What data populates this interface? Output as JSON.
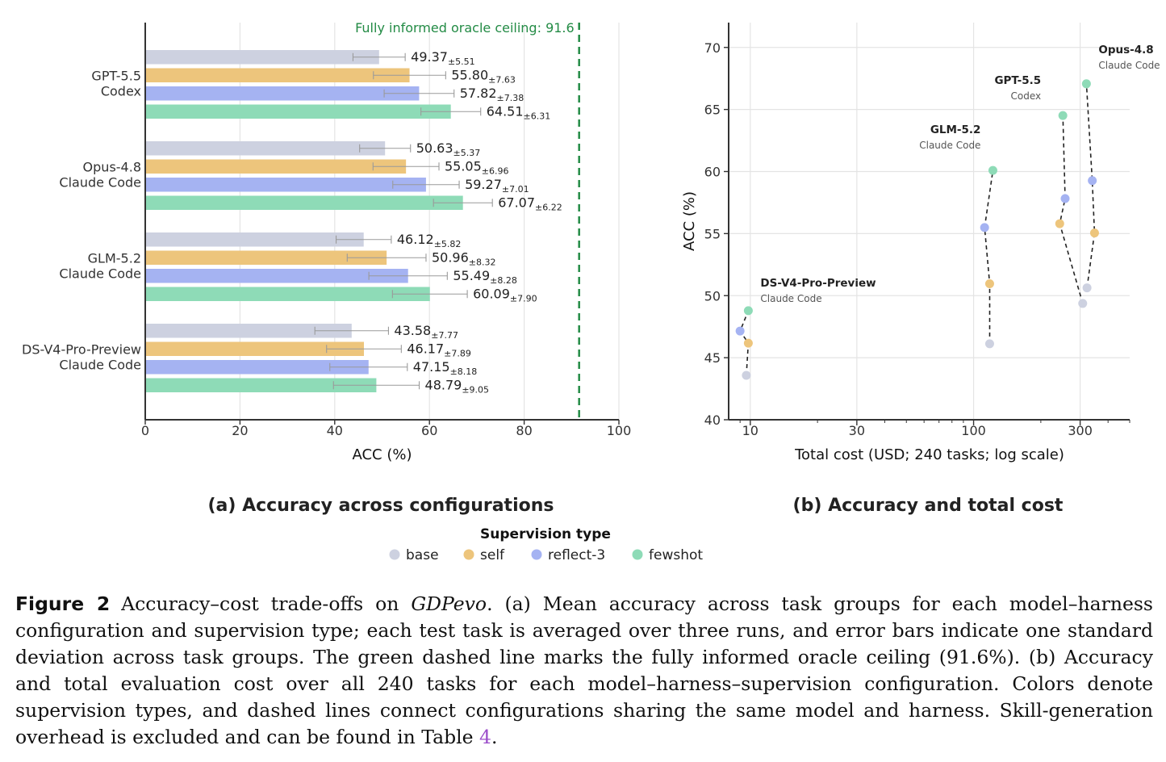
{
  "chart_data": [
    {
      "type": "bar",
      "orientation": "horizontal",
      "panel_title": "(a) Accuracy across configurations",
      "xlabel": "ACC (%)",
      "xlim": [
        0,
        100
      ],
      "xticks": [
        0,
        20,
        40,
        60,
        80,
        100
      ],
      "reference_line": {
        "value": 91.6,
        "label": "Fully informed oracle ceiling: 91.6",
        "color": "#238b45"
      },
      "groups": [
        {
          "label": [
            "GPT-5.5",
            "Codex"
          ],
          "bars": [
            {
              "series": "base",
              "value": 49.37,
              "err": 5.51,
              "mean_text": "49.37",
              "err_text": "±5.51"
            },
            {
              "series": "self",
              "value": 55.8,
              "err": 7.63,
              "mean_text": "55.80",
              "err_text": "±7.63"
            },
            {
              "series": "reflect-3",
              "value": 57.82,
              "err": 7.38,
              "mean_text": "57.82",
              "err_text": "±7.38"
            },
            {
              "series": "fewshot",
              "value": 64.51,
              "err": 6.31,
              "mean_text": "64.51",
              "err_text": "±6.31"
            }
          ]
        },
        {
          "label": [
            "Opus-4.8",
            "Claude Code"
          ],
          "bars": [
            {
              "series": "base",
              "value": 50.63,
              "err": 5.37,
              "mean_text": "50.63",
              "err_text": "±5.37"
            },
            {
              "series": "self",
              "value": 55.05,
              "err": 6.96,
              "mean_text": "55.05",
              "err_text": "±6.96"
            },
            {
              "series": "reflect-3",
              "value": 59.27,
              "err": 7.01,
              "mean_text": "59.27",
              "err_text": "±7.01"
            },
            {
              "series": "fewshot",
              "value": 67.07,
              "err": 6.22,
              "mean_text": "67.07",
              "err_text": "±6.22"
            }
          ]
        },
        {
          "label": [
            "GLM-5.2",
            "Claude Code"
          ],
          "bars": [
            {
              "series": "base",
              "value": 46.12,
              "err": 5.82,
              "mean_text": "46.12",
              "err_text": "±5.82"
            },
            {
              "series": "self",
              "value": 50.96,
              "err": 8.32,
              "mean_text": "50.96",
              "err_text": "±8.32"
            },
            {
              "series": "reflect-3",
              "value": 55.49,
              "err": 8.28,
              "mean_text": "55.49",
              "err_text": "±8.28"
            },
            {
              "series": "fewshot",
              "value": 60.09,
              "err": 7.9,
              "mean_text": "60.09",
              "err_text": "±7.90"
            }
          ]
        },
        {
          "label": [
            "DS-V4-Pro-Preview",
            "Claude Code"
          ],
          "bars": [
            {
              "series": "base",
              "value": 43.58,
              "err": 7.77,
              "mean_text": "43.58",
              "err_text": "±7.77"
            },
            {
              "series": "self",
              "value": 46.17,
              "err": 7.89,
              "mean_text": "46.17",
              "err_text": "±7.89"
            },
            {
              "series": "reflect-3",
              "value": 47.15,
              "err": 8.18,
              "mean_text": "47.15",
              "err_text": "±8.18"
            },
            {
              "series": "fewshot",
              "value": 48.79,
              "err": 9.05,
              "mean_text": "48.79",
              "err_text": "±9.05"
            }
          ]
        }
      ]
    },
    {
      "type": "scatter",
      "panel_title": "(b) Accuracy and total cost",
      "xlabel": "Total cost (USD; 240 tasks; log scale)",
      "ylabel": "ACC (%)",
      "xscale": "log",
      "xlim": [
        8,
        500
      ],
      "xticks": [
        10,
        30,
        100,
        300
      ],
      "xtick_labels": [
        "10",
        "30",
        "100",
        "300"
      ],
      "ylim": [
        40,
        72
      ],
      "yticks": [
        40,
        45,
        50,
        55,
        60,
        65,
        70
      ],
      "grid": true,
      "connectors": "dashed lines connect configurations of the same model and harness",
      "models": [
        {
          "name": "DS-V4-Pro-Preview",
          "harness": "Claude Code",
          "points": [
            {
              "series": "base",
              "x": 9.6,
              "y": 43.58
            },
            {
              "series": "self",
              "x": 9.8,
              "y": 46.17
            },
            {
              "series": "reflect-3",
              "x": 9.0,
              "y": 47.15
            },
            {
              "series": "fewshot",
              "x": 9.8,
              "y": 48.79
            }
          ]
        },
        {
          "name": "GLM-5.2",
          "harness": "Claude Code",
          "points": [
            {
              "series": "base",
              "x": 118,
              "y": 46.12
            },
            {
              "series": "self",
              "x": 118,
              "y": 50.96
            },
            {
              "series": "reflect-3",
              "x": 112,
              "y": 55.49
            },
            {
              "series": "fewshot",
              "x": 122,
              "y": 60.09
            }
          ]
        },
        {
          "name": "GPT-5.5",
          "harness": "Codex",
          "points": [
            {
              "series": "base",
              "x": 308,
              "y": 49.37
            },
            {
              "series": "self",
              "x": 243,
              "y": 55.8
            },
            {
              "series": "reflect-3",
              "x": 257,
              "y": 57.82
            },
            {
              "series": "fewshot",
              "x": 251,
              "y": 64.51
            }
          ]
        },
        {
          "name": "Opus-4.8",
          "harness": "Claude Code",
          "points": [
            {
              "series": "base",
              "x": 322,
              "y": 50.63
            },
            {
              "series": "self",
              "x": 348,
              "y": 55.05
            },
            {
              "series": "reflect-3",
              "x": 340,
              "y": 59.27
            },
            {
              "series": "fewshot",
              "x": 320,
              "y": 67.07
            }
          ]
        }
      ]
    }
  ],
  "legend": {
    "title": "Supervision type",
    "items": [
      {
        "key": "base",
        "label": "base",
        "color": "#cdd1e0"
      },
      {
        "key": "self",
        "label": "self",
        "color": "#edc57c"
      },
      {
        "key": "reflect-3",
        "label": "reflect-3",
        "color": "#a5b3f2"
      },
      {
        "key": "fewshot",
        "label": "fewshot",
        "color": "#8edbb7"
      }
    ]
  },
  "caption": {
    "label": "Figure 2",
    "part1": "Accuracy–cost trade-offs on ",
    "dataset": "GDPevo",
    "part2": ".  (a) Mean accuracy across task groups for each model–harness configuration and supervision type; each test task is averaged over three runs, and error bars indicate one standard deviation across task groups. The green dashed line marks the fully informed oracle ceiling (91.6%). (b) Accuracy and total evaluation cost over all 240 tasks for each model–harness–supervision configuration. Colors denote supervision types, and dashed lines connect configurations sharing the same model and harness. Skill-generation overhead is excluded and can be found in Table ",
    "table_ref": "4",
    "part3": "."
  }
}
